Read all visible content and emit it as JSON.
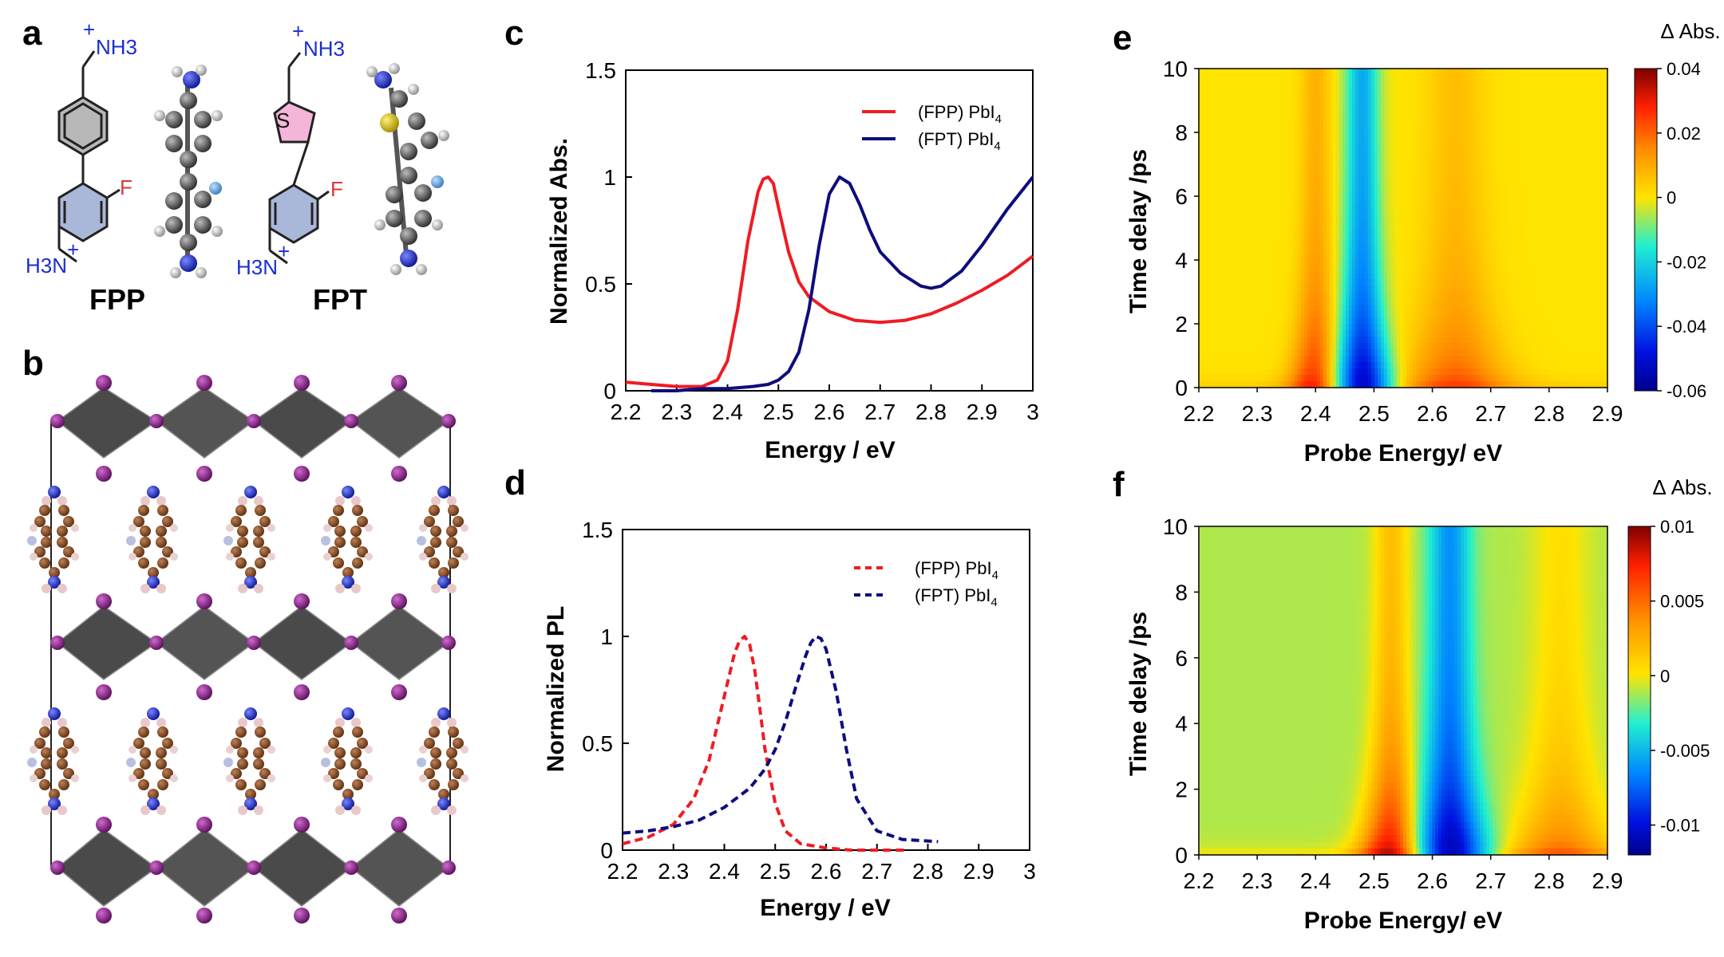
{
  "panel_labels": [
    "a",
    "b",
    "c",
    "d",
    "e",
    "f"
  ],
  "molecules": {
    "fpp": {
      "name": "FPP",
      "top_group": "NH3",
      "bottom_group": "H3N",
      "substituent": "F",
      "charge": "+"
    },
    "fpt": {
      "name": "FPT",
      "top_group": "NH3",
      "bottom_group": "H3N",
      "substituent": "F",
      "ring_atom": "S",
      "charge": "+"
    }
  },
  "colors": {
    "fpp": "#ee1c24",
    "fpt": "#0d0d7c",
    "nitrogen": "#1a2ed0",
    "fluorine": "#e0343a",
    "sulfur": "#111111"
  },
  "chart_data": [
    {
      "id": "c",
      "type": "line",
      "xlabel": "Energy / eV",
      "ylabel": "Normalized Abs.",
      "xlim": [
        2.2,
        3.0
      ],
      "ylim": [
        0,
        1.5
      ],
      "xticks": [
        "2.2",
        "2.3",
        "2.4",
        "2.5",
        "2.6",
        "2.7",
        "2.8",
        "2.9",
        "3"
      ],
      "yticks": [
        "0",
        "0.5",
        "1",
        "1.5"
      ],
      "series": [
        {
          "name": "(FPP) PbI",
          "sub": "4",
          "style": "solid",
          "x": [
            2.2,
            2.25,
            2.3,
            2.35,
            2.38,
            2.4,
            2.42,
            2.44,
            2.46,
            2.47,
            2.48,
            2.49,
            2.5,
            2.52,
            2.54,
            2.56,
            2.6,
            2.65,
            2.7,
            2.75,
            2.8,
            2.85,
            2.9,
            2.95,
            3.0
          ],
          "y": [
            0.04,
            0.03,
            0.02,
            0.02,
            0.05,
            0.14,
            0.38,
            0.7,
            0.93,
            0.99,
            1.0,
            0.97,
            0.86,
            0.65,
            0.51,
            0.44,
            0.37,
            0.33,
            0.32,
            0.33,
            0.36,
            0.41,
            0.47,
            0.54,
            0.63
          ]
        },
        {
          "name": "(FPT) PbI",
          "sub": "4",
          "style": "solid",
          "x": [
            2.25,
            2.3,
            2.35,
            2.4,
            2.45,
            2.48,
            2.5,
            2.52,
            2.54,
            2.56,
            2.58,
            2.6,
            2.62,
            2.64,
            2.66,
            2.68,
            2.7,
            2.74,
            2.78,
            2.8,
            2.82,
            2.86,
            2.9,
            2.95,
            3.0
          ],
          "y": [
            0.0,
            0.0,
            0.01,
            0.01,
            0.02,
            0.03,
            0.05,
            0.09,
            0.18,
            0.38,
            0.68,
            0.92,
            1.0,
            0.97,
            0.87,
            0.75,
            0.65,
            0.55,
            0.49,
            0.48,
            0.49,
            0.56,
            0.68,
            0.85,
            1.0
          ]
        }
      ]
    },
    {
      "id": "d",
      "type": "line",
      "xlabel": "Energy / eV",
      "ylabel": "Normalized PL",
      "xlim": [
        2.2,
        3.0
      ],
      "ylim": [
        0,
        1.5
      ],
      "xticks": [
        "2.2",
        "2.3",
        "2.4",
        "2.5",
        "2.6",
        "2.7",
        "2.8",
        "2.9",
        "3"
      ],
      "yticks": [
        "0",
        "0.5",
        "1",
        "1.5"
      ],
      "series": [
        {
          "name": "(FPP) PbI",
          "sub": "4",
          "style": "dashed",
          "x": [
            2.2,
            2.25,
            2.3,
            2.34,
            2.37,
            2.39,
            2.41,
            2.42,
            2.43,
            2.44,
            2.45,
            2.46,
            2.47,
            2.48,
            2.5,
            2.52,
            2.55,
            2.6,
            2.65,
            2.7,
            2.76
          ],
          "y": [
            0.03,
            0.06,
            0.12,
            0.24,
            0.42,
            0.62,
            0.82,
            0.92,
            0.98,
            1.0,
            0.96,
            0.84,
            0.66,
            0.47,
            0.22,
            0.09,
            0.03,
            0.01,
            0.0,
            0.0,
            0.0
          ]
        },
        {
          "name": "(FPT) PbI",
          "sub": "4",
          "style": "dashed",
          "x": [
            2.2,
            2.25,
            2.3,
            2.35,
            2.4,
            2.45,
            2.48,
            2.5,
            2.52,
            2.54,
            2.56,
            2.57,
            2.58,
            2.59,
            2.6,
            2.62,
            2.64,
            2.66,
            2.7,
            2.75,
            2.82
          ],
          "y": [
            0.08,
            0.09,
            0.11,
            0.14,
            0.2,
            0.29,
            0.38,
            0.47,
            0.6,
            0.76,
            0.91,
            0.97,
            1.0,
            0.99,
            0.94,
            0.74,
            0.47,
            0.24,
            0.09,
            0.05,
            0.04
          ]
        }
      ]
    },
    {
      "id": "e",
      "type": "heatmap",
      "xlabel": "Probe Energy/ eV",
      "ylabel": "Time delay /ps",
      "xlim": [
        2.2,
        2.9
      ],
      "ylim": [
        0,
        10
      ],
      "xticks": [
        "2.2",
        "2.3",
        "2.4",
        "2.5",
        "2.6",
        "2.7",
        "2.8",
        "2.9"
      ],
      "yticks": [
        "0",
        "2",
        "4",
        "6",
        "8",
        "10"
      ],
      "colorbar": {
        "title": "Δ Abs.",
        "min": -0.06,
        "max": 0.04,
        "ticks": [
          "0.04",
          "0.02",
          "0",
          "-0.02",
          "-0.04",
          "-0.06"
        ]
      },
      "features": [
        {
          "energy": 2.4,
          "amplitude": 0.03,
          "width": 0.025,
          "kind": "bleach-positive"
        },
        {
          "energy": 2.48,
          "amplitude": -0.058,
          "width": 0.028,
          "kind": "bleach"
        },
        {
          "energy": 2.64,
          "amplitude": 0.022,
          "width": 0.05,
          "kind": "induced-absorption"
        }
      ]
    },
    {
      "id": "f",
      "type": "heatmap",
      "xlabel": "Probe Energy/ eV",
      "ylabel": "Time delay /ps",
      "xlim": [
        2.2,
        2.9
      ],
      "ylim": [
        0,
        10
      ],
      "xticks": [
        "2.2",
        "2.3",
        "2.4",
        "2.5",
        "2.6",
        "2.7",
        "2.8",
        "2.9"
      ],
      "yticks": [
        "0",
        "2",
        "4",
        "6",
        "8",
        "10"
      ],
      "colorbar": {
        "title": "Δ Abs.",
        "min": -0.012,
        "max": 0.01,
        "ticks": [
          "0.01",
          "0.005",
          "0",
          "-0.005",
          "-0.01"
        ]
      },
      "features": [
        {
          "energy": 2.53,
          "amplitude": 0.009,
          "width": 0.03,
          "kind": "bleach-positive"
        },
        {
          "energy": 2.63,
          "amplitude": -0.012,
          "width": 0.035,
          "kind": "bleach"
        },
        {
          "energy": 2.82,
          "amplitude": 0.005,
          "width": 0.05,
          "kind": "induced-absorption"
        }
      ]
    }
  ]
}
